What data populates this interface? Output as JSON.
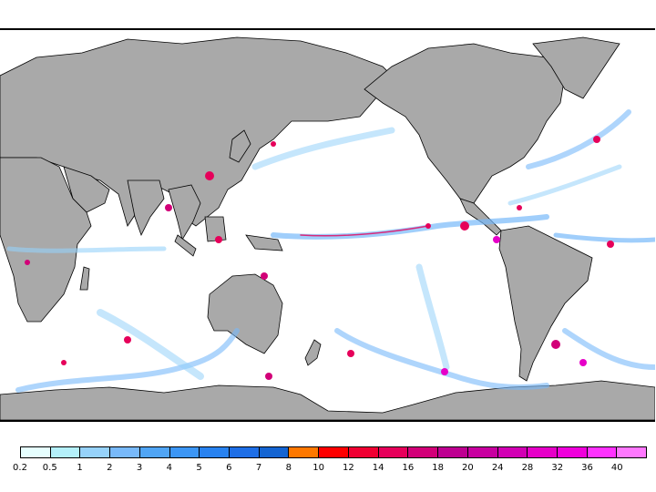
{
  "map": {
    "projection": "equirectangular",
    "center_longitude": "dateline",
    "land_color": "#a9a9a9",
    "ocean_color": "#ffffff"
  },
  "legend": {
    "labels": [
      "0.2",
      "0.5",
      "1",
      "2",
      "3",
      "4",
      "5",
      "6",
      "7",
      "8",
      "10",
      "12",
      "14",
      "16",
      "18",
      "20",
      "24",
      "28",
      "32",
      "36",
      "40"
    ],
    "colors": [
      "#e6ffff",
      "#b4f0fa",
      "#96d2fa",
      "#78b9fa",
      "#50a5f5",
      "#3c96f5",
      "#2882f0",
      "#1e6ee6",
      "#1464d2",
      "#ff7800",
      "#ff0000",
      "#f00032",
      "#e6005a",
      "#d20078",
      "#be0091",
      "#c800a0",
      "#d200b4",
      "#e600c8",
      "#f000dc",
      "#ff32ff",
      "#ff78ff"
    ]
  }
}
